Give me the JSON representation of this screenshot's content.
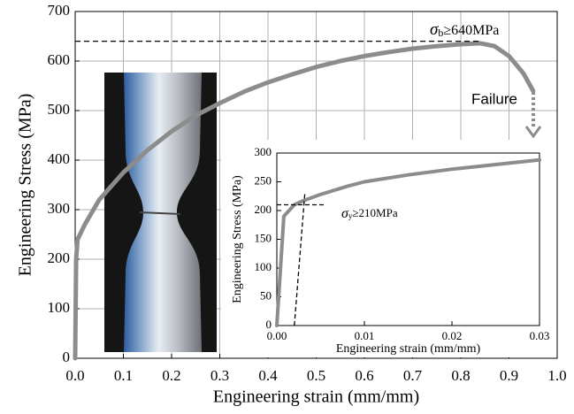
{
  "chart_data": [
    {
      "type": "line",
      "x_label": "Engineering strain (mm/mm)",
      "y_label": "Engineering Stress (MPa)",
      "x": [
        0,
        0.002,
        0.005,
        0.02,
        0.05,
        0.1,
        0.15,
        0.2,
        0.25,
        0.3,
        0.35,
        0.4,
        0.45,
        0.5,
        0.55,
        0.6,
        0.65,
        0.7,
        0.75,
        0.8,
        0.84,
        0.87,
        0.9,
        0.93,
        0.95
      ],
      "values": [
        0,
        200,
        240,
        270,
        320,
        375,
        420,
        458,
        490,
        515,
        538,
        557,
        573,
        588,
        600,
        610,
        618,
        625,
        630,
        634,
        636,
        630,
        610,
        575,
        540
      ],
      "color": "#8c8c8c",
      "xlim": [
        0,
        1
      ],
      "xticks": [
        {
          "value": 0,
          "label": "0.0"
        },
        0.1,
        0.2,
        0.3,
        0.4,
        0.5,
        0.6,
        0.7,
        0.8,
        0.9,
        {
          "value": 1,
          "label": "1.0"
        }
      ],
      "ylim": [
        0,
        700
      ],
      "yticks": [
        0,
        100,
        200,
        300,
        400,
        500,
        600,
        700
      ],
      "grid": true,
      "annotations": [
        {
          "symbol": "σ",
          "subscript": "b",
          "text": "≥640MPa",
          "y": 640,
          "x": 0.84
        },
        {
          "text": "Failure"
        }
      ]
    },
    {
      "type": "line",
      "x_label": "Engineering strain (mm/mm)",
      "y_label": "Engineering Stress (MPa)",
      "x": [
        0,
        0.0008,
        0.002,
        0.003,
        0.005,
        0.008,
        0.01,
        0.015,
        0.02,
        0.025,
        0.03
      ],
      "values": [
        0,
        190,
        210,
        217,
        228,
        242,
        250,
        262,
        272,
        280,
        288
      ],
      "color": "#8c8c8c",
      "xlim": [
        0,
        0.03
      ],
      "xticks": [
        {
          "value": 0,
          "label": "0.00"
        },
        0.01,
        0.02,
        0.03
      ],
      "ylim": [
        0,
        300
      ],
      "yticks": [
        0,
        50,
        100,
        150,
        200,
        250,
        300
      ],
      "grid": false,
      "annotations": [
        {
          "symbol": "σ",
          "subscript": "y",
          "text": "≥210MPa",
          "y": 210,
          "x": 0.0055
        }
      ]
    }
  ]
}
